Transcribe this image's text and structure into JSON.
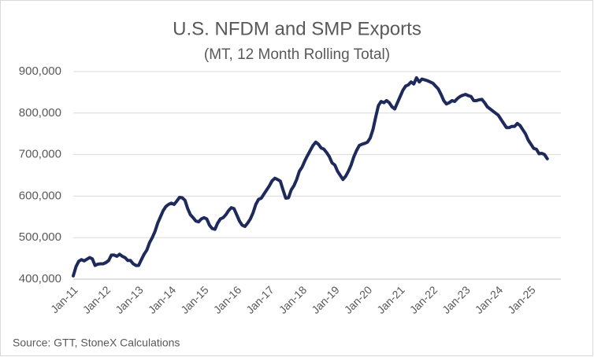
{
  "chart_data": {
    "type": "line",
    "title": "U.S. NFDM and SMP Exports",
    "subtitle": "(MT, 12 Month Rolling Total)",
    "source": "Source: GTT, StoneX Calculations",
    "color": "#1f2a5c",
    "grid": true,
    "ylim": [
      400000,
      900000
    ],
    "yticks": [
      {
        "value": 400000,
        "label": "400,000"
      },
      {
        "value": 500000,
        "label": "500,000"
      },
      {
        "value": 600000,
        "label": "600,000"
      },
      {
        "value": 700000,
        "label": "700,000"
      },
      {
        "value": 800000,
        "label": "800,000"
      },
      {
        "value": 900000,
        "label": "900,000"
      }
    ],
    "categories": [
      "Jan-11",
      null,
      null,
      null,
      null,
      null,
      null,
      null,
      null,
      null,
      null,
      null,
      "Jan-12",
      null,
      null,
      null,
      null,
      null,
      null,
      null,
      null,
      null,
      null,
      null,
      "Jan-13",
      null,
      null,
      null,
      null,
      null,
      null,
      null,
      null,
      null,
      null,
      null,
      "Jan-14",
      null,
      null,
      null,
      null,
      null,
      null,
      null,
      null,
      null,
      null,
      null,
      "Jan-15",
      null,
      null,
      null,
      null,
      null,
      null,
      null,
      null,
      null,
      null,
      null,
      "Jan-16",
      null,
      null,
      null,
      null,
      null,
      null,
      null,
      null,
      null,
      null,
      null,
      "Jan-17",
      null,
      null,
      null,
      null,
      null,
      null,
      null,
      null,
      null,
      null,
      null,
      "Jan-18",
      null,
      null,
      null,
      null,
      null,
      null,
      null,
      null,
      null,
      null,
      null,
      "Jan-19",
      null,
      null,
      null,
      null,
      null,
      null,
      null,
      null,
      null,
      null,
      null,
      "Jan-20",
      null,
      null,
      null,
      null,
      null,
      null,
      null,
      null,
      null,
      null,
      null,
      "Jan-21",
      null,
      null,
      null,
      null,
      null,
      null,
      null,
      null,
      null,
      null,
      null,
      "Jan-22",
      null,
      null,
      null,
      null,
      null,
      null,
      null,
      null,
      null,
      null,
      null,
      "Jan-23",
      null,
      null,
      null,
      null,
      null,
      null,
      null,
      null,
      null,
      null,
      null,
      "Jan-24",
      null,
      null,
      null,
      null,
      null,
      null,
      null,
      null,
      null,
      null,
      null,
      "Jan-25",
      null,
      null,
      null,
      null,
      null,
      null
    ],
    "values": [
      408000,
      430000,
      443000,
      447000,
      444000,
      448000,
      452000,
      449000,
      433000,
      436000,
      437000,
      437000,
      440000,
      445000,
      458000,
      458000,
      455000,
      460000,
      455000,
      452000,
      445000,
      445000,
      437000,
      433000,
      433000,
      447000,
      460000,
      470000,
      488000,
      500000,
      515000,
      535000,
      550000,
      565000,
      575000,
      580000,
      583000,
      580000,
      588000,
      597000,
      596000,
      590000,
      570000,
      555000,
      548000,
      540000,
      538000,
      545000,
      548000,
      545000,
      530000,
      522000,
      520000,
      535000,
      545000,
      548000,
      555000,
      565000,
      572000,
      570000,
      555000,
      540000,
      530000,
      527000,
      535000,
      545000,
      560000,
      580000,
      592000,
      595000,
      605000,
      615000,
      625000,
      637000,
      643000,
      640000,
      636000,
      615000,
      595000,
      596000,
      615000,
      625000,
      640000,
      660000,
      670000,
      685000,
      698000,
      710000,
      722000,
      730000,
      725000,
      716000,
      713000,
      705000,
      695000,
      680000,
      675000,
      660000,
      650000,
      640000,
      648000,
      660000,
      675000,
      695000,
      710000,
      722000,
      725000,
      727000,
      730000,
      740000,
      760000,
      790000,
      818000,
      828000,
      825000,
      830000,
      825000,
      815000,
      810000,
      825000,
      840000,
      855000,
      865000,
      868000,
      875000,
      870000,
      885000,
      875000,
      882000,
      880000,
      878000,
      875000,
      872000,
      865000,
      858000,
      845000,
      830000,
      822000,
      825000,
      830000,
      828000,
      835000,
      840000,
      843000,
      845000,
      842000,
      840000,
      830000,
      830000,
      832000,
      833000,
      825000,
      815000,
      810000,
      805000,
      800000,
      795000,
      785000,
      775000,
      765000,
      765000,
      768000,
      768000,
      775000,
      770000,
      760000,
      750000,
      735000,
      725000,
      715000,
      713000,
      702000,
      703000,
      700000,
      690000
    ]
  }
}
